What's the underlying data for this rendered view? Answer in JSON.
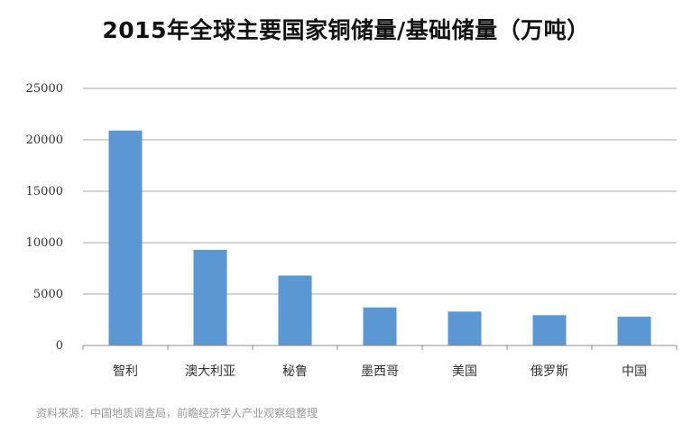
{
  "chart_data": {
    "type": "bar",
    "title": "2015年全球主要国家铜储量/基础储量（万吨）",
    "categories": [
      "智利",
      "澳大利亚",
      "秘鲁",
      "墨西哥",
      "美国",
      "俄罗斯",
      "中国"
    ],
    "values": [
      20900,
      9300,
      6800,
      3700,
      3300,
      2950,
      2800
    ],
    "xlabel": "",
    "ylabel": "",
    "ylim": [
      0,
      25000
    ],
    "yticks": [
      0,
      5000,
      10000,
      15000,
      20000,
      25000
    ],
    "grid": true,
    "legend": "none",
    "bar_color": "#5b97d2",
    "source": "资料来源：中国地质调查局，前瞻经济学人产业观察组整理"
  }
}
